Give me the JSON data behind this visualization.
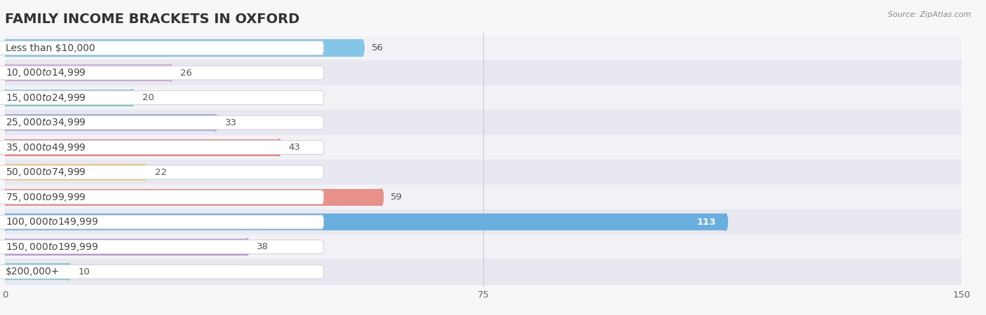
{
  "title": "FAMILY INCOME BRACKETS IN OXFORD",
  "source": "Source: ZipAtlas.com",
  "categories": [
    "Less than $10,000",
    "$10,000 to $14,999",
    "$15,000 to $24,999",
    "$25,000 to $34,999",
    "$35,000 to $49,999",
    "$50,000 to $74,999",
    "$75,000 to $99,999",
    "$100,000 to $149,999",
    "$150,000 to $199,999",
    "$200,000+"
  ],
  "values": [
    56,
    26,
    20,
    33,
    43,
    22,
    59,
    113,
    38,
    10
  ],
  "bar_colors": [
    "#85c5e5",
    "#c9a8d4",
    "#7ecdc8",
    "#a8a8d8",
    "#f08080",
    "#f5c98a",
    "#e8908a",
    "#6aaee0",
    "#b898cc",
    "#7ecdc8"
  ],
  "bg_row_colors": [
    "#f2f2f6",
    "#e8e8f0"
  ],
  "xlim": [
    0,
    150
  ],
  "xticks": [
    0,
    75,
    150
  ],
  "title_fontsize": 14,
  "label_fontsize": 10,
  "value_fontsize": 9.5,
  "background_color": "#f7f7f9"
}
